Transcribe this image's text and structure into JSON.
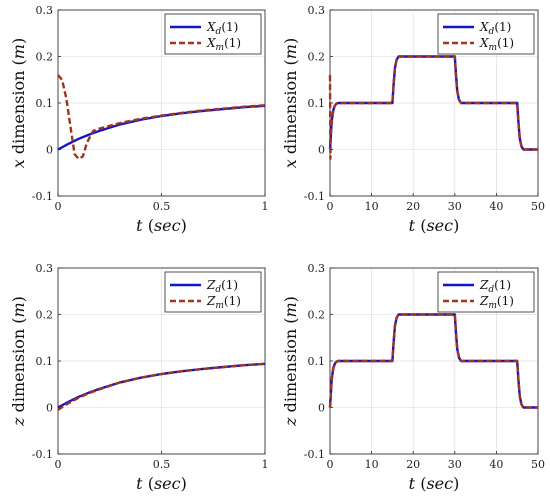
{
  "colors": {
    "desired": "#1414c8",
    "measured": "#a0341e"
  },
  "chart_data": [
    {
      "id": "x-short",
      "type": "line",
      "xlabel": "t (sec)",
      "ylabel": "x dimension (m)",
      "xlim": [
        0,
        1
      ],
      "ylim": [
        -0.1,
        0.3
      ],
      "xticks": [
        "0",
        "0.5",
        "1"
      ],
      "yticks": [
        "-0.1",
        "0",
        "0.1",
        "0.2",
        "0.3"
      ],
      "legend": "top-right",
      "grid": true,
      "series": [
        {
          "name": "X_d(1)",
          "style": "solid",
          "x": [
            0,
            0.05,
            0.1,
            0.15,
            0.2,
            0.3,
            0.4,
            0.5,
            0.6,
            0.7,
            0.8,
            0.9,
            1.0
          ],
          "y": [
            0,
            0.012,
            0.023,
            0.032,
            0.04,
            0.054,
            0.064,
            0.072,
            0.078,
            0.083,
            0.087,
            0.091,
            0.094
          ]
        },
        {
          "name": "X_m(1)",
          "style": "dashed",
          "x": [
            0,
            0.02,
            0.04,
            0.06,
            0.08,
            0.1,
            0.12,
            0.14,
            0.17,
            0.2,
            0.3,
            0.4,
            0.5,
            0.6,
            0.7,
            0.8,
            0.9,
            1.0
          ],
          "y": [
            0.16,
            0.15,
            0.11,
            0.05,
            -0.01,
            -0.02,
            -0.015,
            0.015,
            0.04,
            0.045,
            0.057,
            0.066,
            0.073,
            0.079,
            0.084,
            0.088,
            0.092,
            0.095
          ]
        }
      ]
    },
    {
      "id": "x-long",
      "type": "line",
      "xlabel": "t (sec)",
      "ylabel": "x dimension (m)",
      "xlim": [
        0,
        50
      ],
      "ylim": [
        -0.1,
        0.3
      ],
      "xticks": [
        "0",
        "10",
        "20",
        "30",
        "40",
        "50"
      ],
      "yticks": [
        "-0.1",
        "0",
        "0.1",
        "0.2",
        "0.3"
      ],
      "legend": "top-right",
      "grid": true,
      "series": [
        {
          "name": "X_d(1)",
          "style": "solid",
          "x": [
            0,
            0.4,
            0.8,
            1.2,
            1.6,
            2,
            15,
            15.3,
            15.6,
            16,
            16.5,
            30,
            30.3,
            30.6,
            31,
            31.5,
            45,
            45.3,
            45.6,
            46,
            46.5,
            50
          ],
          "y": [
            0,
            0.06,
            0.085,
            0.095,
            0.099,
            0.1,
            0.1,
            0.14,
            0.175,
            0.193,
            0.2,
            0.2,
            0.16,
            0.125,
            0.107,
            0.1,
            0.1,
            0.06,
            0.025,
            0.007,
            0,
            0
          ]
        },
        {
          "name": "X_m(1)",
          "style": "dashed",
          "x": [
            0,
            0.1,
            0.2,
            0.4,
            0.8,
            1.2,
            1.6,
            2,
            15,
            15.3,
            15.6,
            16,
            16.5,
            30,
            30.3,
            30.6,
            31,
            31.5,
            45,
            45.3,
            45.6,
            46,
            46.5,
            50
          ],
          "y": [
            0.16,
            -0.02,
            0.04,
            0.06,
            0.085,
            0.095,
            0.099,
            0.1,
            0.1,
            0.14,
            0.175,
            0.193,
            0.2,
            0.2,
            0.16,
            0.125,
            0.107,
            0.1,
            0.1,
            0.06,
            0.025,
            0.007,
            0,
            0
          ]
        }
      ]
    },
    {
      "id": "z-short",
      "type": "line",
      "xlabel": "t (sec)",
      "ylabel": "z dimension (m)",
      "xlim": [
        0,
        1
      ],
      "ylim": [
        -0.1,
        0.3
      ],
      "xticks": [
        "0",
        "0.5",
        "1"
      ],
      "yticks": [
        "-0.1",
        "0",
        "0.1",
        "0.2",
        "0.3"
      ],
      "legend": "top-right",
      "grid": true,
      "series": [
        {
          "name": "Z_d(1)",
          "style": "solid",
          "x": [
            0,
            0.05,
            0.1,
            0.15,
            0.2,
            0.3,
            0.4,
            0.5,
            0.6,
            0.7,
            0.8,
            0.9,
            1.0
          ],
          "y": [
            0,
            0.012,
            0.023,
            0.032,
            0.04,
            0.054,
            0.064,
            0.072,
            0.078,
            0.083,
            0.087,
            0.091,
            0.094
          ]
        },
        {
          "name": "Z_m(1)",
          "style": "dashed",
          "x": [
            0,
            0.05,
            0.1,
            0.15,
            0.2,
            0.3,
            0.4,
            0.5,
            0.6,
            0.7,
            0.8,
            0.9,
            1.0
          ],
          "y": [
            -0.005,
            0.009,
            0.021,
            0.031,
            0.039,
            0.054,
            0.064,
            0.072,
            0.078,
            0.083,
            0.087,
            0.091,
            0.094
          ]
        }
      ]
    },
    {
      "id": "z-long",
      "type": "line",
      "xlabel": "t (sec)",
      "ylabel": "z dimension (m)",
      "xlim": [
        0,
        50
      ],
      "ylim": [
        -0.1,
        0.3
      ],
      "xticks": [
        "0",
        "10",
        "20",
        "30",
        "40",
        "50"
      ],
      "yticks": [
        "-0.1",
        "0",
        "0.1",
        "0.2",
        "0.3"
      ],
      "legend": "top-right",
      "grid": true,
      "series": [
        {
          "name": "Z_d(1)",
          "style": "solid",
          "x": [
            0,
            0.4,
            0.8,
            1.2,
            1.6,
            2,
            15,
            15.3,
            15.6,
            16,
            16.5,
            30,
            30.3,
            30.6,
            31,
            31.5,
            45,
            45.3,
            45.6,
            46,
            46.5,
            50
          ],
          "y": [
            0,
            0.06,
            0.085,
            0.095,
            0.099,
            0.1,
            0.1,
            0.14,
            0.175,
            0.193,
            0.2,
            0.2,
            0.16,
            0.125,
            0.107,
            0.1,
            0.1,
            0.06,
            0.025,
            0.007,
            0,
            0
          ]
        },
        {
          "name": "Z_m(1)",
          "style": "dashed",
          "x": [
            0,
            0.4,
            0.8,
            1.2,
            1.6,
            2,
            15,
            15.3,
            15.6,
            16,
            16.5,
            30,
            30.3,
            30.6,
            31,
            31.5,
            45,
            45.3,
            45.6,
            46,
            46.5,
            50
          ],
          "y": [
            0,
            0.06,
            0.085,
            0.095,
            0.099,
            0.1,
            0.1,
            0.14,
            0.175,
            0.193,
            0.2,
            0.2,
            0.16,
            0.125,
            0.107,
            0.1,
            0.1,
            0.06,
            0.025,
            0.007,
            0,
            0
          ]
        }
      ]
    }
  ]
}
